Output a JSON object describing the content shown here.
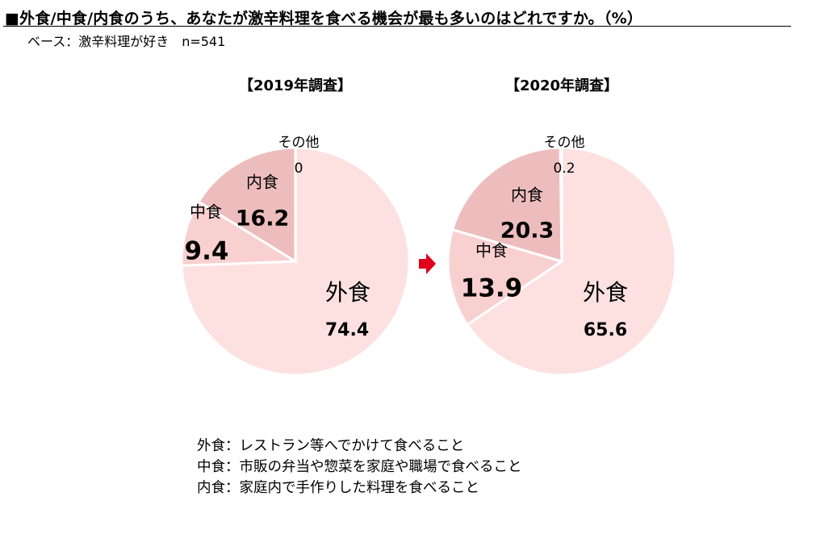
{
  "header": {
    "title": "■外食/中食/内食のうち、あなたが激辛料理を食べる機会が最も多いのはどれですか。（%）",
    "base": "ベース：激辛料理が好き　n=541"
  },
  "arrow": {
    "color": "#e0001b"
  },
  "colors": {
    "外食": "#fde1e1",
    "中食": "#f9d0d0",
    "内食": "#edbdbd",
    "その他": "#ffffff"
  },
  "chart_data": [
    {
      "type": "pie",
      "title": "【2019年調査】",
      "slices": [
        {
          "label": "外食",
          "value": 74.4,
          "value_text": "74.4"
        },
        {
          "label": "中食",
          "value": 9.4,
          "value_text": "9.4"
        },
        {
          "label": "内食",
          "value": 16.2,
          "value_text": "16.2"
        },
        {
          "label": "その他",
          "value": 0,
          "value_text": "0"
        }
      ]
    },
    {
      "type": "pie",
      "title": "【2020年調査】",
      "slices": [
        {
          "label": "外食",
          "value": 65.6,
          "value_text": "65.6"
        },
        {
          "label": "中食",
          "value": 13.9,
          "value_text": "13.9"
        },
        {
          "label": "内食",
          "value": 20.3,
          "value_text": "20.3"
        },
        {
          "label": "その他",
          "value": 0.2,
          "value_text": "0.2"
        }
      ]
    }
  ],
  "definitions": [
    "外食：レストラン等へでかけて食べること",
    "中食：市販の弁当や惣菜を家庭や職場で食べること",
    "内食：家庭内で手作りした料理を食べること"
  ]
}
